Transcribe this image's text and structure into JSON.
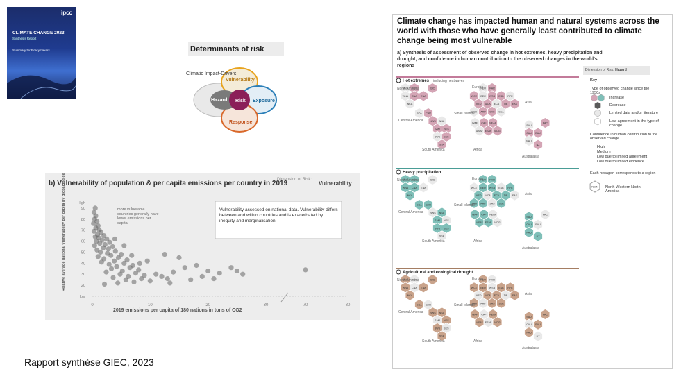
{
  "cover": {
    "logo": "ipcc",
    "title": "CLIMATE CHANGE 2023",
    "subtitle": "Synthesis Report",
    "summary": "Summary for Policymakers"
  },
  "determinants": {
    "title": "Determinants of risk",
    "climatic_impact_drivers": "Climatic Impact-Drivers",
    "hazard": "Hazard",
    "risk": "Risk",
    "vulnerability": "Vulnerability",
    "exposure": "Exposure",
    "response": "Response",
    "colors": {
      "hazard": "#6b6b6b",
      "risk": "#8b1f58",
      "vulnerability": "#e8a31d",
      "exposure": "#2b7fb8",
      "response": "#d9682a"
    }
  },
  "panel_b": {
    "title": "b) Vulnerability of population & per capita emissions per country in 2019",
    "dimension_label": "Dimension of Risk:",
    "dimension_value": "Vulnerability",
    "annotation_left": "more vulnerable countries generally have lower emissions per capita",
    "annotation_box": "Vulnerability assessed on national data. Vulnerability differs between and within countries and is exacerbated by inequity and marginalisation."
  },
  "chart_data": {
    "type": "scatter",
    "ylabel": "Relative average national vulnerability per capita by global indices INFORM and WRI (2019)",
    "xlabel": "2019 emissions per capita of 180 nations in tons of CO2",
    "y_ticks": [
      "High",
      "90",
      "80",
      "70",
      "60",
      "50",
      "40",
      "30",
      "20",
      "low"
    ],
    "x_ticks": [
      "0",
      "10",
      "20",
      "30",
      "70",
      "80"
    ],
    "xlim": [
      0,
      80
    ],
    "ylim": [
      10,
      95
    ],
    "grid": false,
    "points": [
      [
        0.5,
        90
      ],
      [
        0.3,
        86
      ],
      [
        0.6,
        83
      ],
      [
        0.4,
        80
      ],
      [
        0.8,
        78
      ],
      [
        0.2,
        76
      ],
      [
        1.0,
        74
      ],
      [
        0.6,
        72
      ],
      [
        1.2,
        70
      ],
      [
        0.3,
        69
      ],
      [
        1.5,
        68
      ],
      [
        0.9,
        66
      ],
      [
        2.0,
        65
      ],
      [
        0.5,
        64
      ],
      [
        1.1,
        63
      ],
      [
        2.5,
        62
      ],
      [
        1.7,
        61
      ],
      [
        0.7,
        60
      ],
      [
        3.0,
        59
      ],
      [
        1.3,
        58
      ],
      [
        2.2,
        57
      ],
      [
        0.4,
        56
      ],
      [
        3.5,
        55
      ],
      [
        1.9,
        54
      ],
      [
        2.8,
        53
      ],
      [
        0.8,
        52
      ],
      [
        4.0,
        51
      ],
      [
        1.4,
        50
      ],
      [
        2.6,
        49
      ],
      [
        5.0,
        48
      ],
      [
        3.2,
        47
      ],
      [
        1.0,
        46
      ],
      [
        4.5,
        45
      ],
      [
        2.0,
        44
      ],
      [
        6.0,
        43
      ],
      [
        3.8,
        42
      ],
      [
        1.6,
        41
      ],
      [
        5.5,
        40
      ],
      [
        2.9,
        39
      ],
      [
        7.0,
        38
      ],
      [
        4.2,
        37
      ],
      [
        6.5,
        36
      ],
      [
        3.3,
        35
      ],
      [
        8.0,
        34
      ],
      [
        5.2,
        33
      ],
      [
        2.4,
        32
      ],
      [
        7.5,
        31
      ],
      [
        4.8,
        30
      ],
      [
        9.0,
        29
      ],
      [
        6.2,
        28
      ],
      [
        3.6,
        27
      ],
      [
        8.5,
        26
      ],
      [
        5.8,
        25
      ],
      [
        10.0,
        24
      ],
      [
        7.2,
        23
      ],
      [
        4.4,
        22
      ],
      [
        2.1,
        21
      ],
      [
        12.0,
        28
      ],
      [
        14.0,
        32
      ],
      [
        16.0,
        36
      ],
      [
        11.0,
        30
      ],
      [
        13.0,
        26
      ],
      [
        15.0,
        45
      ],
      [
        18.0,
        38
      ],
      [
        20.0,
        33
      ],
      [
        22.0,
        31
      ],
      [
        19.0,
        28
      ],
      [
        17.0,
        25
      ],
      [
        24.0,
        36
      ],
      [
        25.0,
        33
      ],
      [
        26.0,
        30
      ],
      [
        12.5,
        48
      ],
      [
        9.5,
        42
      ],
      [
        38.0,
        22
      ],
      [
        70.0,
        34
      ],
      [
        21.0,
        26
      ],
      [
        8.2,
        40
      ],
      [
        6.8,
        47
      ],
      [
        5.5,
        56
      ],
      [
        3.9,
        62
      ]
    ]
  },
  "right": {
    "headline": "Climate change has impacted human and natural systems across the world with those who have generally least contributed to climate change being most vulnerable",
    "subtitle": "a) Synthesis of assessment of observed change in hot extremes, heavy precipitation and drought, and confidence in human contribution to the observed changes in the world's regions",
    "dimension_of_risk": "Dimension of Risk:",
    "hazard": "Hazard",
    "key": "Key",
    "type_change": "Type of observed change since the 1950s",
    "increase": "Increase",
    "decrease": "Decrease",
    "low_agreement": "Low agreement in the type of change",
    "limited_data": "Limited data and/or literature",
    "confidence": "Confidence in human contribution to the observed change",
    "conf_high": "High",
    "conf_medium": "Medium",
    "conf_low_agreement": "Low due to limited agreement",
    "conf_low_evidence": "Low due to limited evidence",
    "each_hex": "Each hexagon corresponds to a region",
    "nwn": "NWN",
    "nwn_name": "North-Western North America",
    "sections": [
      {
        "label": "Hot extremes",
        "note": "including heatwaves",
        "color": "#d4a5b5",
        "line": "#c37b9a"
      },
      {
        "label": "Heavy precipitation",
        "note": "",
        "color": "#7fbfb8",
        "line": "#4a9d96"
      },
      {
        "label": "Agricultural and ecological drought",
        "note": "",
        "color": "#c9a38b",
        "line": "#a57e63"
      }
    ],
    "regions_na": [
      "NWN",
      "NEN",
      "GIC",
      "WNA",
      "CNA",
      "ENA",
      "NCA"
    ],
    "regions_eu": [
      "NEU",
      "RAR",
      "WCE",
      "EEU",
      "WSB",
      "ESB",
      "RFE",
      "MED",
      "WCA",
      "ECA",
      "TIB",
      "EAS",
      "SAH",
      "ARP",
      "SAS",
      "SEA"
    ],
    "regions_sa": [
      "SCA",
      "CAR",
      "NWS",
      "NSA",
      "SAM",
      "NES",
      "SWS",
      "SES",
      "SSA"
    ],
    "regions_af": [
      "WAF",
      "CAF",
      "NEAF",
      "WSAF",
      "ESAF",
      "MDG",
      "SAU",
      "CAU",
      "EAU",
      "NAU",
      "NZ",
      "PAC"
    ],
    "labels": {
      "north_america": "North America",
      "europe": "Europe",
      "asia": "Asia",
      "central_america": "Central America",
      "small_islands": "Small Islands",
      "south_america": "South America",
      "africa": "Africa",
      "australasia": "Australasia"
    }
  },
  "caption": "Rapport synthèse GIEC, 2023"
}
